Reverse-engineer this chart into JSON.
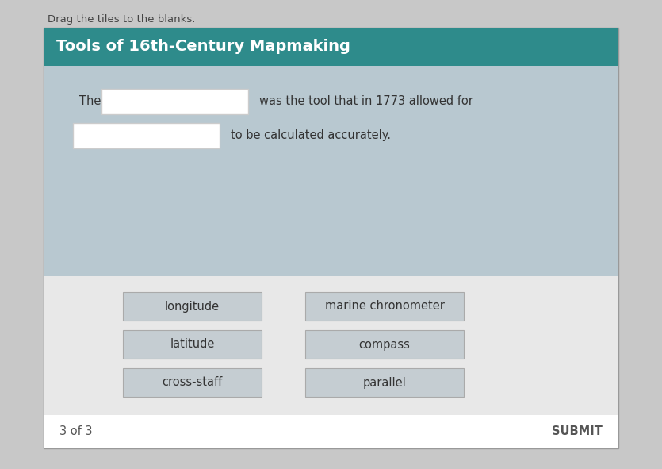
{
  "page_bg": "#c8c8c8",
  "drag_text": "Drag the tiles to the blanks.",
  "drag_text_color": "#444444",
  "drag_text_fontsize": 9.5,
  "card_bg": "#ffffff",
  "card_border_color": "#999999",
  "header_bg": "#2e8b8b",
  "header_text": "Tools of 16th-Century Mapmaking",
  "header_text_color": "#ffffff",
  "header_fontsize": 14,
  "content_bg": "#b8c8d0",
  "sentence_line1_prefix": "The",
  "sentence_line1_suffix": "was the tool that in 1773 allowed for",
  "sentence_line2_suffix": "to be calculated accurately.",
  "sentence_color": "#333333",
  "sentence_fontsize": 10.5,
  "blank_bg": "#ffffff",
  "blank_border": "#cccccc",
  "tile_area_bg": "#e8e8e8",
  "tiles_left": [
    "longitude",
    "latitude",
    "cross-staff"
  ],
  "tiles_right": [
    "marine chronometer",
    "compass",
    "parallel"
  ],
  "tile_bg": "#c5cdd2",
  "tile_text_color": "#333333",
  "tile_fontsize": 10.5,
  "tile_border_color": "#aaaaaa",
  "footer_text_left": "3 of 3",
  "footer_text_right": "SUBMIT",
  "footer_color": "#555555",
  "footer_fontsize": 10.5
}
